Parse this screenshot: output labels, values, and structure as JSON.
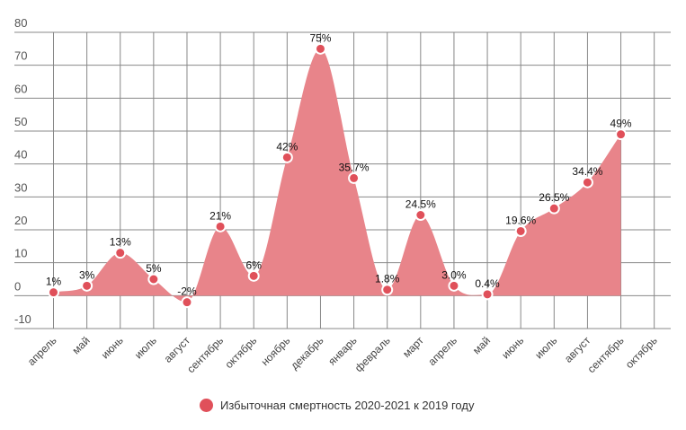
{
  "chart_data": {
    "type": "area",
    "categories": [
      "апрель",
      "май",
      "июнь",
      "июль",
      "август",
      "сентябрь",
      "октябрь",
      "ноябрь",
      "декабрь",
      "январь",
      "февраль",
      "март",
      "апрель",
      "май",
      "июнь",
      "июль",
      "август",
      "сентябрь",
      "октябрь"
    ],
    "series": [
      {
        "name": "Избыточная смертность 2020-2021 к 2019 году",
        "values": [
          1,
          3,
          13,
          5,
          -2,
          21,
          6,
          42,
          75,
          35.7,
          1.8,
          24.5,
          3.0,
          0.4,
          19.6,
          26.5,
          34.4,
          49,
          null
        ],
        "labels": [
          "1%",
          "3%",
          "13%",
          "5%",
          "-2%",
          "21%",
          "6%",
          "42%",
          "75%",
          "35.7%",
          "1.8%",
          "24.5%",
          "3.0%",
          "0.4%",
          "19.6%",
          "26.5%",
          "34.4%",
          "49%",
          ""
        ]
      }
    ],
    "ylim": [
      -10,
      80
    ],
    "yticks": [
      -10,
      0,
      10,
      20,
      30,
      40,
      50,
      60,
      70,
      80
    ],
    "grid": true,
    "legend": "bottom",
    "colors": {
      "fill": "#e8848a",
      "point": "#e0505a",
      "grid": "#888888"
    }
  },
  "legend": {
    "label": "Избыточная смертность 2020-2021 к 2019 году"
  }
}
